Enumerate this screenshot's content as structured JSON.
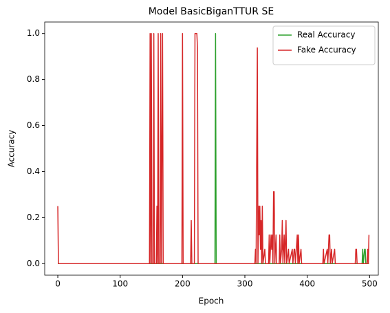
{
  "chart_data": {
    "type": "line",
    "title": "Model BasicBiganTTUR SE",
    "xlabel": "Epoch",
    "ylabel": "Accuracy",
    "x": [
      0,
      1,
      147,
      148,
      149,
      150,
      151,
      153,
      154,
      155,
      158,
      159,
      160,
      161,
      162,
      164,
      165,
      166,
      168,
      169,
      199,
      200,
      201,
      213,
      214,
      215,
      219,
      220,
      223,
      224,
      225,
      252,
      253,
      254,
      316,
      317,
      318,
      320,
      321,
      322,
      323,
      324,
      325,
      326,
      327,
      328,
      329,
      332,
      333,
      338,
      339,
      340,
      342,
      343,
      344,
      345,
      346,
      347,
      348,
      350,
      351,
      355,
      356,
      357,
      359,
      360,
      361,
      363,
      364,
      366,
      367,
      370,
      371,
      376,
      377,
      379,
      380,
      381,
      384,
      385,
      386,
      387,
      390,
      391,
      425,
      426,
      427,
      432,
      433,
      435,
      436,
      437,
      439,
      440,
      444,
      445,
      477,
      478,
      479,
      480,
      488,
      489,
      490,
      492,
      493,
      494,
      496,
      497,
      498,
      499
    ],
    "series": [
      {
        "name": "Real Accuracy",
        "color": "#2ca02c",
        "values": [
          0,
          0,
          0,
          0,
          0,
          0,
          0,
          0,
          0,
          0,
          0,
          0,
          0,
          0,
          0,
          0,
          0,
          0,
          0,
          0,
          0,
          0,
          0,
          0,
          0,
          0,
          0,
          0,
          0,
          0,
          0,
          0,
          1,
          0,
          0,
          0,
          0,
          0,
          0,
          0,
          0,
          0,
          0,
          0,
          0,
          0,
          0,
          0,
          0,
          0,
          0,
          0,
          0,
          0,
          0,
          0,
          0,
          0,
          0,
          0,
          0,
          0,
          0,
          0,
          0,
          0,
          0,
          0,
          0,
          0,
          0,
          0,
          0,
          0,
          0,
          0,
          0,
          0,
          0,
          0,
          0,
          0,
          0,
          0,
          0,
          0,
          0,
          0,
          0,
          0,
          0,
          0,
          0,
          0,
          0,
          0,
          0,
          0,
          0,
          0,
          0,
          0.0625,
          0,
          0.0625,
          0.0625,
          0,
          0,
          0,
          0,
          0
        ]
      },
      {
        "name": "Fake Accuracy",
        "color": "#d62728",
        "values": [
          0.25,
          0,
          0,
          1,
          0,
          1,
          0,
          0,
          1,
          0,
          0,
          0.25,
          0,
          1,
          0,
          0,
          1,
          0,
          1,
          0,
          0,
          1,
          0,
          0,
          0.1875,
          0,
          0,
          1,
          1,
          0.9375,
          0,
          0,
          0,
          0,
          0,
          0.0625,
          0,
          0.9375,
          0,
          0.25,
          0.125,
          0.25,
          0.0625,
          0.1875,
          0,
          0.25,
          0,
          0.0625,
          0,
          0,
          0.125,
          0,
          0.125,
          0.0625,
          0.125,
          0,
          0.3125,
          0.3125,
          0,
          0.125,
          0,
          0,
          0.125,
          0,
          0.0625,
          0.1875,
          0,
          0.125,
          0,
          0.1875,
          0,
          0.0625,
          0,
          0.0625,
          0,
          0.0625,
          0.0625,
          0,
          0.125,
          0,
          0.125,
          0,
          0.0625,
          0,
          0,
          0.0625,
          0,
          0.0625,
          0,
          0.125,
          0.125,
          0,
          0.0625,
          0,
          0.0625,
          0,
          0,
          0.0625,
          0.0625,
          0,
          0,
          0,
          0,
          0,
          0,
          0,
          0,
          0.0625,
          0,
          0.125
        ]
      }
    ],
    "xlim": [
      -21,
      514
    ],
    "ylim": [
      -0.05,
      1.05
    ],
    "xticks": [
      0,
      100,
      200,
      300,
      400,
      500
    ],
    "yticks": [
      {
        "value": 0,
        "label": "0.0"
      },
      {
        "value": 0.2,
        "label": "0.2"
      },
      {
        "value": 0.4,
        "label": "0.4"
      },
      {
        "value": 0.6,
        "label": "0.6"
      },
      {
        "value": 0.8,
        "label": "0.8"
      },
      {
        "value": 1,
        "label": "1.0"
      }
    ],
    "legend": "upper right"
  }
}
